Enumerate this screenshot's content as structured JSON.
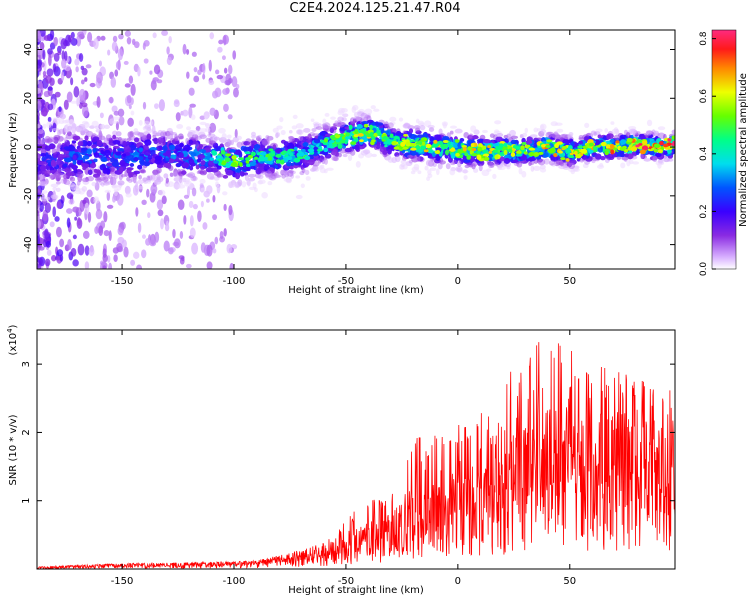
{
  "title": "C2E4.2024.125.21.47.R04",
  "chart_data": [
    {
      "type": "heatmap",
      "xlabel": "Height of straight line (km)",
      "ylabel": "Frequency (Hz)",
      "xlim": [
        -188,
        97
      ],
      "ylim": [
        -50,
        48
      ],
      "xticks": [
        -150,
        -100,
        -50,
        0,
        50
      ],
      "yticks": [
        -40,
        -20,
        0,
        20,
        40
      ],
      "colorbar": {
        "label": "Normalized spectral amplitude",
        "range": [
          0,
          0.83
        ],
        "ticks": [
          0.0,
          0.2,
          0.4,
          0.6,
          0.8
        ]
      },
      "ridge": {
        "x": [
          -188,
          -170,
          -150,
          -130,
          -110,
          -100,
          -90,
          -80,
          -70,
          -60,
          -50,
          -40,
          -35,
          -30,
          -20,
          -10,
          0,
          10,
          20,
          30,
          40,
          50,
          60,
          70,
          80,
          90,
          97
        ],
        "y": [
          -5,
          -4,
          -4,
          -3,
          -4,
          -6,
          -4,
          -4,
          -3,
          1,
          4,
          6,
          5,
          2,
          1,
          0,
          -1,
          -2,
          -1,
          -2,
          0,
          -2,
          0,
          0,
          1,
          0,
          1
        ],
        "amp": [
          0.2,
          0.28,
          0.3,
          0.3,
          0.33,
          0.42,
          0.36,
          0.36,
          0.34,
          0.38,
          0.42,
          0.46,
          0.46,
          0.45,
          0.46,
          0.46,
          0.5,
          0.48,
          0.46,
          0.46,
          0.5,
          0.46,
          0.52,
          0.55,
          0.58,
          0.55,
          0.58
        ],
        "halfwidth": [
          14,
          14,
          13,
          12,
          10,
          10,
          10,
          10,
          10,
          9,
          9,
          8,
          8,
          8,
          8,
          8,
          8,
          8,
          7,
          7,
          7,
          7,
          6,
          6,
          6,
          6,
          6
        ]
      }
    },
    {
      "type": "line",
      "xlabel": "Height of straight line (km)",
      "ylabel": "SNR (10 * v/v)",
      "yscale_label": "(x10^4)",
      "xlim": [
        -188,
        97
      ],
      "ylim": [
        0,
        3.5
      ],
      "xticks": [
        -150,
        -100,
        -50,
        0,
        50
      ],
      "yticks": [
        1,
        2,
        3
      ],
      "series_color": "#ff0000",
      "envelope": {
        "x": [
          -188,
          -150,
          -110,
          -90,
          -80,
          -70,
          -60,
          -55,
          -50,
          -45,
          -40,
          -30,
          -25,
          -20,
          -10,
          0,
          10,
          20,
          30,
          40,
          50,
          60,
          70,
          80,
          90,
          97
        ],
        "max": [
          0.03,
          0.08,
          0.1,
          0.12,
          0.2,
          0.28,
          0.38,
          0.55,
          0.7,
          0.9,
          1.0,
          1.05,
          1.45,
          1.9,
          2.0,
          2.1,
          2.3,
          2.6,
          3.4,
          3.5,
          3.3,
          3.0,
          2.9,
          2.8,
          2.6,
          2.7
        ],
        "mean": [
          0.02,
          0.05,
          0.06,
          0.07,
          0.1,
          0.15,
          0.2,
          0.25,
          0.3,
          0.35,
          0.4,
          0.45,
          0.55,
          0.7,
          0.8,
          0.85,
          0.9,
          1.0,
          1.15,
          1.3,
          1.35,
          1.3,
          1.35,
          1.3,
          1.3,
          1.3
        ]
      }
    }
  ]
}
